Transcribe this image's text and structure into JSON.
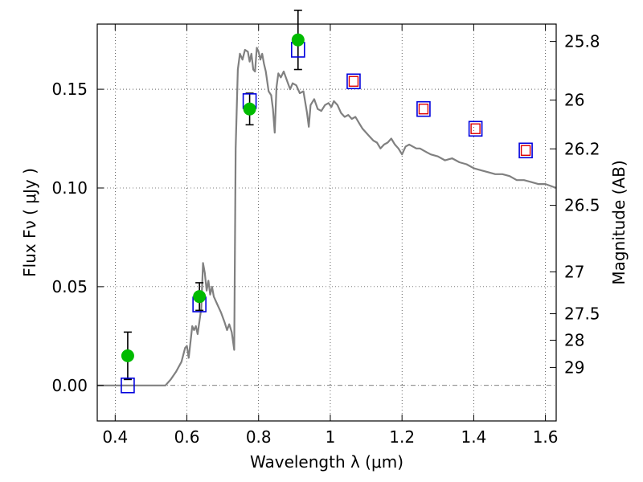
{
  "chart_data": {
    "type": "scatter",
    "xlabel": "Wavelength  λ (μm)",
    "ylabel": "Flux  Fν  ( μJy )",
    "ylabel_right": "Magnitude (AB)",
    "xlim": [
      0.35,
      1.63
    ],
    "ylim": [
      -0.018,
      0.183
    ],
    "x_ticks": [
      {
        "value": 0.4,
        "label": "0.4"
      },
      {
        "value": 0.6,
        "label": "0.6"
      },
      {
        "value": 0.8,
        "label": "0.8"
      },
      {
        "value": 1.0,
        "label": "1"
      },
      {
        "value": 1.2,
        "label": "1.2"
      },
      {
        "value": 1.4,
        "label": "1.4"
      },
      {
        "value": 1.6,
        "label": "1.6"
      }
    ],
    "y_ticks": [
      {
        "value": 0.0,
        "label": "0.00"
      },
      {
        "value": 0.05,
        "label": "0.05"
      },
      {
        "value": 0.1,
        "label": "0.10"
      },
      {
        "value": 0.15,
        "label": "0.15"
      }
    ],
    "mag_ticks": [
      {
        "value": 0.1742,
        "label": "25.8"
      },
      {
        "value": 0.1445,
        "label": "26"
      },
      {
        "value": 0.1198,
        "label": "26.2"
      },
      {
        "value": 0.0912,
        "label": "26.5"
      },
      {
        "value": 0.0575,
        "label": "27"
      },
      {
        "value": 0.0363,
        "label": "27.5"
      },
      {
        "value": 0.0229,
        "label": "28"
      },
      {
        "value": 0.0091,
        "label": "29"
      }
    ],
    "grid": true,
    "zero_line": true,
    "series": [
      {
        "role": "model",
        "style": "line",
        "color": "#808080",
        "points": [
          [
            0.35,
            0.0
          ],
          [
            0.54,
            0.0
          ],
          [
            0.555,
            0.003
          ],
          [
            0.57,
            0.007
          ],
          [
            0.585,
            0.012
          ],
          [
            0.595,
            0.019
          ],
          [
            0.6,
            0.02
          ],
          [
            0.605,
            0.014
          ],
          [
            0.61,
            0.022
          ],
          [
            0.615,
            0.03
          ],
          [
            0.62,
            0.028
          ],
          [
            0.625,
            0.03
          ],
          [
            0.63,
            0.026
          ],
          [
            0.64,
            0.039
          ],
          [
            0.645,
            0.062
          ],
          [
            0.65,
            0.057
          ],
          [
            0.655,
            0.048
          ],
          [
            0.66,
            0.053
          ],
          [
            0.665,
            0.046
          ],
          [
            0.67,
            0.05
          ],
          [
            0.675,
            0.045
          ],
          [
            0.685,
            0.041
          ],
          [
            0.695,
            0.037
          ],
          [
            0.705,
            0.032
          ],
          [
            0.712,
            0.028
          ],
          [
            0.718,
            0.031
          ],
          [
            0.725,
            0.027
          ],
          [
            0.732,
            0.018
          ],
          [
            0.736,
            0.12
          ],
          [
            0.742,
            0.16
          ],
          [
            0.748,
            0.168
          ],
          [
            0.755,
            0.165
          ],
          [
            0.762,
            0.17
          ],
          [
            0.77,
            0.169
          ],
          [
            0.775,
            0.164
          ],
          [
            0.78,
            0.168
          ],
          [
            0.785,
            0.16
          ],
          [
            0.79,
            0.159
          ],
          [
            0.795,
            0.171
          ],
          [
            0.8,
            0.169
          ],
          [
            0.805,
            0.165
          ],
          [
            0.81,
            0.168
          ],
          [
            0.815,
            0.163
          ],
          [
            0.82,
            0.159
          ],
          [
            0.828,
            0.149
          ],
          [
            0.835,
            0.147
          ],
          [
            0.84,
            0.14
          ],
          [
            0.845,
            0.128
          ],
          [
            0.85,
            0.151
          ],
          [
            0.855,
            0.158
          ],
          [
            0.862,
            0.156
          ],
          [
            0.87,
            0.159
          ],
          [
            0.88,
            0.154
          ],
          [
            0.888,
            0.15
          ],
          [
            0.895,
            0.153
          ],
          [
            0.905,
            0.152
          ],
          [
            0.915,
            0.148
          ],
          [
            0.925,
            0.149
          ],
          [
            0.935,
            0.138
          ],
          [
            0.94,
            0.131
          ],
          [
            0.945,
            0.142
          ],
          [
            0.955,
            0.145
          ],
          [
            0.965,
            0.14
          ],
          [
            0.975,
            0.139
          ],
          [
            0.985,
            0.142
          ],
          [
            0.995,
            0.143
          ],
          [
            1.003,
            0.141
          ],
          [
            1.01,
            0.144
          ],
          [
            1.02,
            0.142
          ],
          [
            1.03,
            0.138
          ],
          [
            1.04,
            0.136
          ],
          [
            1.05,
            0.137
          ],
          [
            1.06,
            0.135
          ],
          [
            1.07,
            0.136
          ],
          [
            1.08,
            0.133
          ],
          [
            1.09,
            0.13
          ],
          [
            1.1,
            0.128
          ],
          [
            1.11,
            0.126
          ],
          [
            1.12,
            0.124
          ],
          [
            1.13,
            0.123
          ],
          [
            1.14,
            0.12
          ],
          [
            1.15,
            0.122
          ],
          [
            1.16,
            0.123
          ],
          [
            1.17,
            0.125
          ],
          [
            1.18,
            0.122
          ],
          [
            1.19,
            0.12
          ],
          [
            1.2,
            0.117
          ],
          [
            1.21,
            0.121
          ],
          [
            1.22,
            0.122
          ],
          [
            1.23,
            0.121
          ],
          [
            1.24,
            0.12
          ],
          [
            1.25,
            0.12
          ],
          [
            1.26,
            0.119
          ],
          [
            1.27,
            0.118
          ],
          [
            1.28,
            0.117
          ],
          [
            1.3,
            0.116
          ],
          [
            1.32,
            0.114
          ],
          [
            1.34,
            0.115
          ],
          [
            1.36,
            0.113
          ],
          [
            1.38,
            0.112
          ],
          [
            1.4,
            0.11
          ],
          [
            1.42,
            0.109
          ],
          [
            1.44,
            0.108
          ],
          [
            1.46,
            0.107
          ],
          [
            1.48,
            0.107
          ],
          [
            1.5,
            0.106
          ],
          [
            1.52,
            0.104
          ],
          [
            1.54,
            0.104
          ],
          [
            1.56,
            0.103
          ],
          [
            1.58,
            0.102
          ],
          [
            1.6,
            0.102
          ],
          [
            1.615,
            0.101
          ],
          [
            1.63,
            0.1
          ]
        ]
      },
      {
        "role": "observed",
        "style": "marker-circle",
        "color": "#00bb00",
        "points": [
          {
            "x": 0.435,
            "y": 0.015,
            "err": 0.012
          },
          {
            "x": 0.635,
            "y": 0.045,
            "err": 0.007
          },
          {
            "x": 0.775,
            "y": 0.14,
            "err": 0.008
          },
          {
            "x": 0.91,
            "y": 0.175,
            "err": 0.015
          }
        ]
      },
      {
        "role": "model-synthetic",
        "style": "marker-square",
        "color": "#0000dd",
        "points": [
          {
            "x": 0.435,
            "y": 0.0
          },
          {
            "x": 0.635,
            "y": 0.041
          },
          {
            "x": 0.775,
            "y": 0.144
          },
          {
            "x": 0.91,
            "y": 0.17
          },
          {
            "x": 1.065,
            "y": 0.154
          },
          {
            "x": 1.26,
            "y": 0.14
          },
          {
            "x": 1.405,
            "y": 0.13
          },
          {
            "x": 1.545,
            "y": 0.119
          }
        ]
      },
      {
        "role": "predicted",
        "style": "marker-square-small",
        "color": "#dd0000",
        "points": [
          {
            "x": 1.065,
            "y": 0.154
          },
          {
            "x": 1.26,
            "y": 0.14
          },
          {
            "x": 1.405,
            "y": 0.13
          },
          {
            "x": 1.545,
            "y": 0.119
          }
        ]
      }
    ]
  }
}
